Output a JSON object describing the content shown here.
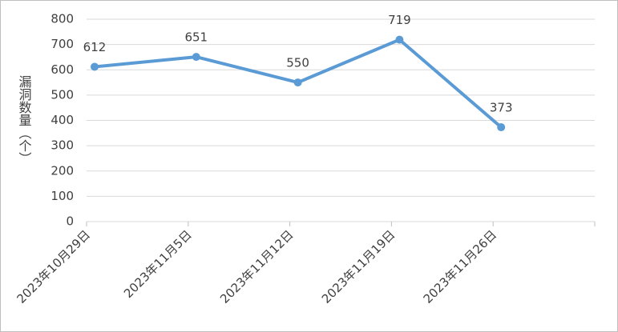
{
  "chart_data": {
    "type": "line",
    "y_label": "漏洞数量（个）",
    "categories": [
      "2023年10月29日",
      "2023年11月5日",
      "2023年11月12日",
      "2023年11月19日",
      "2023年11月26日"
    ],
    "series": [
      {
        "name": "漏洞数量",
        "color": "#5b9bd5",
        "values": [
          612,
          651,
          550,
          719,
          373
        ]
      }
    ],
    "ylim": [
      0,
      800
    ],
    "yticks": [
      0,
      100,
      200,
      300,
      400,
      500,
      600,
      700,
      800
    ],
    "grid": true
  }
}
